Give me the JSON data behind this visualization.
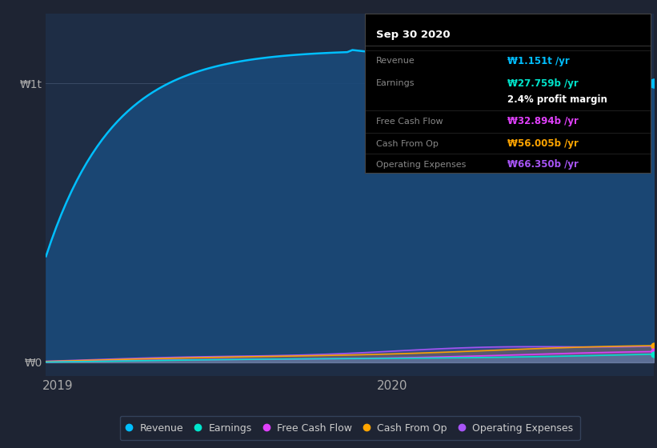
{
  "background_color": "#1e2433",
  "plot_background": "#1e2d45",
  "grid_color": "#2a3a55",
  "ytick_labels": [
    "₩1t",
    "₩0"
  ],
  "ytick_values": [
    1000,
    0
  ],
  "xlabel_2019": "2019",
  "xlabel_2020": "2020",
  "series": {
    "Revenue": {
      "color": "#00bfff",
      "fill_color": "#1a4a7a",
      "legend_color": "#00bfff"
    },
    "Earnings": {
      "color": "#00e5cc",
      "legend_color": "#00e5cc"
    },
    "Free Cash Flow": {
      "color": "#e040fb",
      "legend_color": "#e040fb"
    },
    "Cash From Op": {
      "color": "#ffa500",
      "legend_color": "#ffa500"
    },
    "Operating Expenses": {
      "color": "#a855f7",
      "legend_color": "#a855f7"
    }
  },
  "info_box": {
    "bg_color": "#000000",
    "border_color": "#444444",
    "title": "Sep 30 2020",
    "title_color": "#ffffff",
    "row_data": [
      {
        "label": "Revenue",
        "label_color": "#888888",
        "value": "₩1.151t /yr",
        "value_color": "#00bfff"
      },
      {
        "label": "Earnings",
        "label_color": "#888888",
        "value": "₩27.759b /yr",
        "value_color": "#00e5cc"
      },
      {
        "label": "",
        "label_color": "#888888",
        "value": "2.4% profit margin",
        "value_color": "#ffffff"
      },
      {
        "label": "Free Cash Flow",
        "label_color": "#888888",
        "value": "₩32.894b /yr",
        "value_color": "#e040fb"
      },
      {
        "label": "Cash From Op",
        "label_color": "#888888",
        "value": "₩56.005b /yr",
        "value_color": "#ffa500"
      },
      {
        "label": "Operating Expenses",
        "label_color": "#888888",
        "value": "₩66.350b /yr",
        "value_color": "#a855f7"
      }
    ]
  },
  "n_points": 120
}
